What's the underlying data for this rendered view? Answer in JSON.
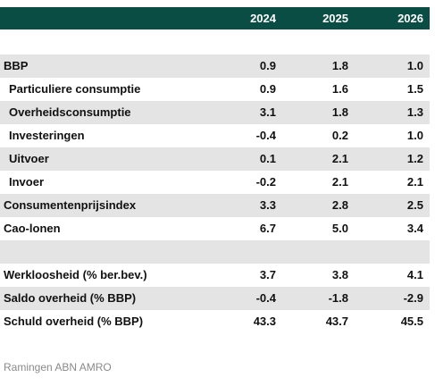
{
  "header": {
    "years": [
      "2024",
      "2025",
      "2026"
    ]
  },
  "rows": [
    {
      "label": "",
      "values": [
        "",
        "",
        ""
      ],
      "indent": false,
      "shaded": false
    },
    {
      "label": "BBP",
      "values": [
        "0.9",
        "1.8",
        "1.0"
      ],
      "indent": false,
      "shaded": true
    },
    {
      "label": "Particuliere consumptie",
      "values": [
        "0.9",
        "1.6",
        "1.5"
      ],
      "indent": true,
      "shaded": false
    },
    {
      "label": "Overheidsconsumptie",
      "values": [
        "3.1",
        "1.8",
        "1.3"
      ],
      "indent": true,
      "shaded": true
    },
    {
      "label": "Investeringen",
      "values": [
        "-0.4",
        "0.2",
        "1.0"
      ],
      "indent": true,
      "shaded": false
    },
    {
      "label": "Uitvoer",
      "values": [
        "0.1",
        "2.1",
        "1.2"
      ],
      "indent": true,
      "shaded": true
    },
    {
      "label": "Invoer",
      "values": [
        "-0.2",
        "2.1",
        "2.1"
      ],
      "indent": true,
      "shaded": false
    },
    {
      "label": "Consumentenprijsindex",
      "values": [
        "3.3",
        "2.8",
        "2.5"
      ],
      "indent": false,
      "shaded": true
    },
    {
      "label": "Cao-lonen",
      "values": [
        "6.7",
        "5.0",
        "3.4"
      ],
      "indent": false,
      "shaded": false
    },
    {
      "label": "",
      "values": [
        "",
        "",
        ""
      ],
      "indent": false,
      "shaded": true
    },
    {
      "label": "Werkloosheid (% ber.bev.)",
      "values": [
        "3.7",
        "3.8",
        "4.1"
      ],
      "indent": false,
      "shaded": false
    },
    {
      "label": "Saldo overheid (% BBP)",
      "values": [
        "-0.4",
        "-1.8",
        "-2.9"
      ],
      "indent": false,
      "shaded": true
    },
    {
      "label": "Schuld overheid (% BBP)",
      "values": [
        "43.3",
        "43.7",
        "45.5"
      ],
      "indent": false,
      "shaded": false
    }
  ],
  "footer": {
    "source": "Ramingen ABN AMRO"
  }
}
